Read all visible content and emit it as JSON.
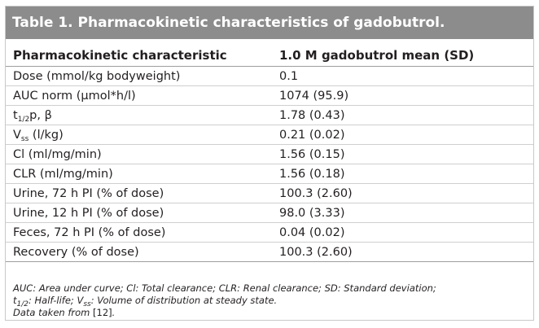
{
  "title": "Table 1. Pharmacokinetic characteristics of gadobutrol.",
  "columns": [
    "Pharmacokinetic characteristic",
    "1.0 M gadobutrol mean (SD)"
  ],
  "rows": [
    {
      "label": "Dose (mmol/kg bodyweight)",
      "value": "0.1"
    },
    {
      "label": "AUC norm (µmol*h/l)",
      "value": "1074 (95.9)"
    },
    {
      "label_main": "t",
      "label_sub": "1/2",
      "label_rest": "p, β",
      "value": "1.78 (0.43)"
    },
    {
      "label_main": "V",
      "label_sub": "ss",
      "label_rest": " (l/kg)",
      "value": "0.21 (0.02)"
    },
    {
      "label": "Cl (ml/mg/min)",
      "value": "1.56 (0.15)"
    },
    {
      "label": "CLR (ml/mg/min)",
      "value": "1.56 (0.18)"
    },
    {
      "label": "Urine, 72 h PI (% of dose)",
      "value": "100.3 (2.60)"
    },
    {
      "label": "Urine, 12 h PI (% of dose)",
      "value": "98.0 (3.33)"
    },
    {
      "label": "Feces, 72 h PI (% of dose)",
      "value": "0.04 (0.02)"
    },
    {
      "label": "Recovery (% of dose)",
      "value": "100.3 (2.60)"
    }
  ],
  "notes": {
    "line1": "AUC: Area under curve; Cl: Total clearance; CLR: Renal clearance; SD: Standard deviation;",
    "line2_t": "t",
    "line2_t_sub": "1/2",
    "line2_mid": ": Half-life; V",
    "line2_v_sub": "ss",
    "line2_end": ": Volume of distribution at steady state.",
    "line3": "Data taken from ",
    "line3_ref": "[12]",
    "line3_end": "."
  }
}
